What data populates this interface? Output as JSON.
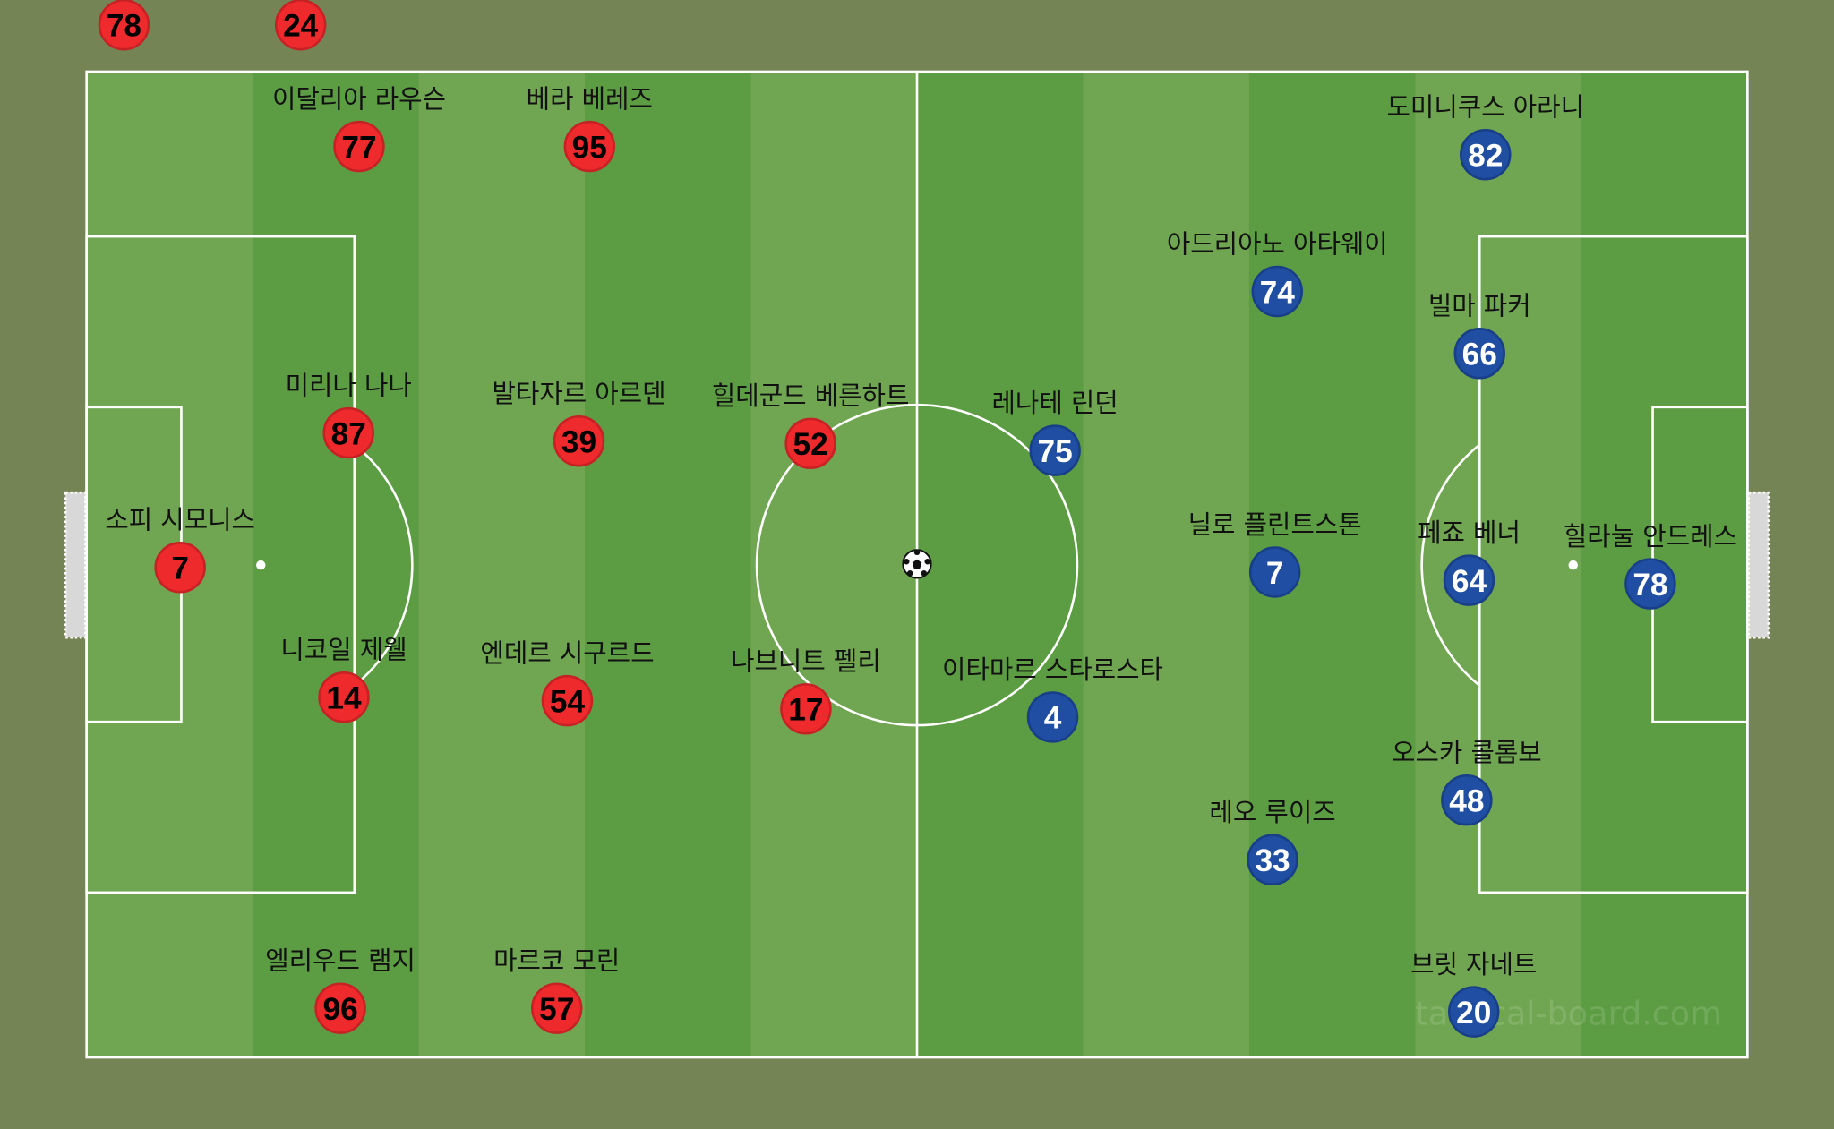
{
  "colors": {
    "background": "#758454",
    "stripe_light": "#70a651",
    "stripe_dark": "#5c9c43",
    "lines": "#ffffff",
    "team_red": "#ee2a2c",
    "team_blue": "#1f4ea3"
  },
  "watermark": "tactical-board.com",
  "ball_icon": "soccer-ball-icon",
  "red_team": [
    {
      "number": "78",
      "name": ""
    },
    {
      "number": "24",
      "name": ""
    },
    {
      "number": "77",
      "name": "이달리아 라우슨"
    },
    {
      "number": "95",
      "name": "베라 베레즈"
    },
    {
      "number": "87",
      "name": "미리나 나나"
    },
    {
      "number": "39",
      "name": "발타자르 아르덴"
    },
    {
      "number": "52",
      "name": "힐데군드 베른하트"
    },
    {
      "number": "7",
      "name": "소피 시모니스"
    },
    {
      "number": "14",
      "name": "니코일 제웰"
    },
    {
      "number": "54",
      "name": "엔데르 시구르드"
    },
    {
      "number": "17",
      "name": "나브니트 펠리"
    },
    {
      "number": "96",
      "name": "엘리우드 램지"
    },
    {
      "number": "57",
      "name": "마르코 모린"
    }
  ],
  "blue_team": [
    {
      "number": "82",
      "name": "도미니쿠스 아라니"
    },
    {
      "number": "74",
      "name": "아드리아노 아타웨이"
    },
    {
      "number": "66",
      "name": "빌마 파커"
    },
    {
      "number": "75",
      "name": "레나테 린던"
    },
    {
      "number": "7",
      "name": "닐로 플린트스톤"
    },
    {
      "number": "64",
      "name": "페죠 베너"
    },
    {
      "number": "78",
      "name": "힐라눌 안드레스"
    },
    {
      "number": "4",
      "name": "이타마르 스타로스타"
    },
    {
      "number": "48",
      "name": "오스카 콜롬보"
    },
    {
      "number": "33",
      "name": "레오 루이즈"
    },
    {
      "number": "20",
      "name": "브릿 자네트"
    }
  ]
}
